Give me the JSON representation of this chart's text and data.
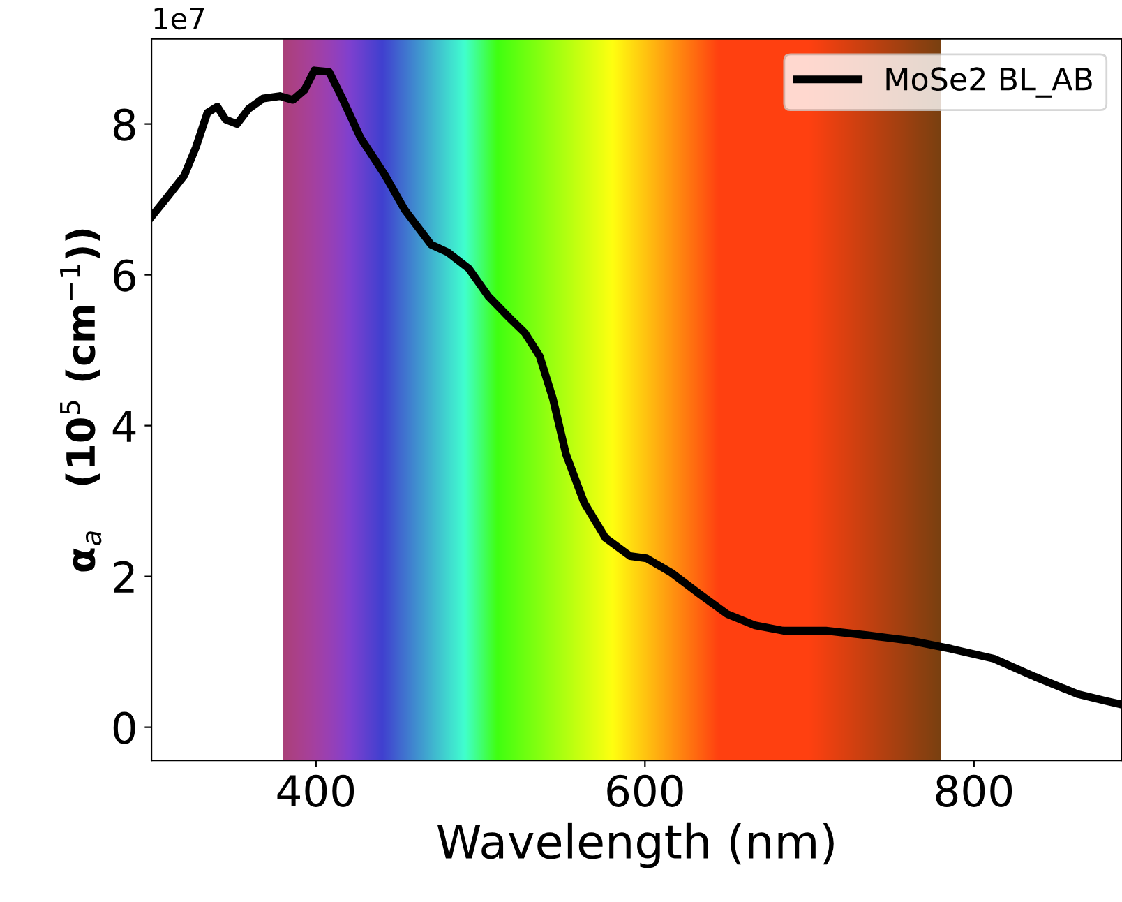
{
  "chart_data": {
    "type": "line",
    "xlabel": "Wavelength (nm)",
    "ylabel": "α$_{a}$   (10$^{5}$ (cm$^{−1}$))",
    "annotations": [
      "1e7"
    ],
    "xlim": [
      300,
      890
    ],
    "ylim": [
      -0.44,
      9.13
    ],
    "xticks": [
      400,
      600,
      800
    ],
    "yticks": [
      0,
      2,
      4,
      6,
      8
    ],
    "grid": false,
    "legend": "top right",
    "line_style": "solid",
    "marker": "none",
    "bands": [
      {
        "axis": "x",
        "from": 380,
        "to": 780,
        "label": null
      }
    ],
    "series": [
      {
        "name": "MoSe2 BL_AB",
        "color": "#000000",
        "x": [
          300,
          310,
          320,
          327,
          334,
          340,
          345,
          352,
          359,
          368,
          378,
          386,
          393,
          399,
          408,
          416,
          427,
          442,
          454,
          470,
          480,
          493,
          505,
          518,
          527,
          536,
          544,
          552,
          563,
          576,
          591,
          601,
          616,
          633,
          650,
          667,
          684,
          710,
          735,
          761,
          786,
          812,
          837,
          863,
          880,
          890
        ],
        "values": [
          6.77,
          7.04,
          7.32,
          7.69,
          8.15,
          8.23,
          8.06,
          8.0,
          8.2,
          8.34,
          8.37,
          8.32,
          8.45,
          8.71,
          8.69,
          8.34,
          7.82,
          7.32,
          6.86,
          6.4,
          6.3,
          6.08,
          5.71,
          5.42,
          5.23,
          4.92,
          4.36,
          3.62,
          2.98,
          2.51,
          2.27,
          2.24,
          2.05,
          1.77,
          1.5,
          1.35,
          1.28,
          1.28,
          1.22,
          1.15,
          1.04,
          0.91,
          0.67,
          0.44,
          0.35,
          0.3
        ]
      }
    ]
  }
}
